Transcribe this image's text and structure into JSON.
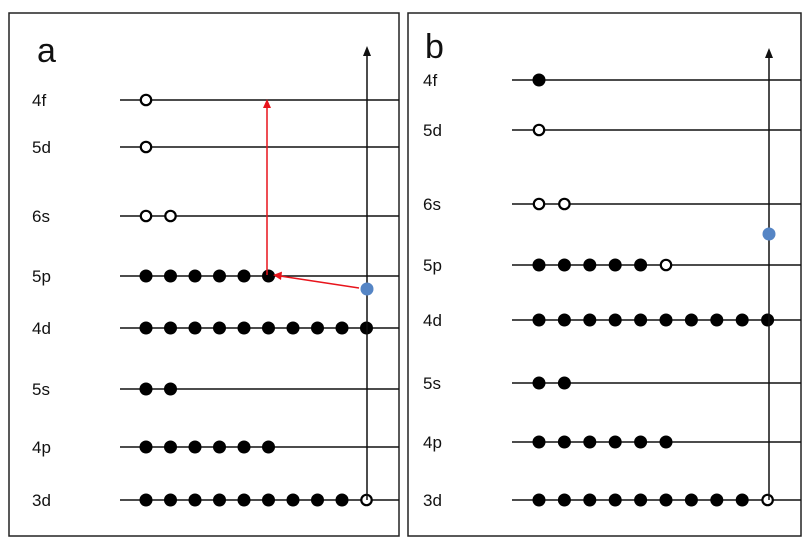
{
  "colors": {
    "electron_filled": "#000000",
    "vacancy": "#ffffff",
    "excited_electron": "#5585c5",
    "transition_arrow": "#e8141c",
    "lines": "#111111"
  },
  "panels": [
    {
      "label": "a",
      "levels": [
        {
          "name": "4f",
          "filled": 0,
          "empty": 1
        },
        {
          "name": "5d",
          "filled": 0,
          "empty": 1
        },
        {
          "name": "6s",
          "filled": 0,
          "empty": 2
        },
        {
          "name": "5p",
          "filled": 6,
          "empty": 0
        },
        {
          "name": "4d",
          "filled": 10,
          "empty": 0
        },
        {
          "name": "5s",
          "filled": 2,
          "empty": 0
        },
        {
          "name": "4p",
          "filled": 6,
          "empty": 0
        },
        {
          "name": "3d",
          "filled": 9,
          "empty": 1
        }
      ],
      "has_transition_arrows": true
    },
    {
      "label": "b",
      "levels": [
        {
          "name": "4f",
          "filled": 1,
          "empty": 0
        },
        {
          "name": "5d",
          "filled": 0,
          "empty": 1
        },
        {
          "name": "6s",
          "filled": 0,
          "empty": 2
        },
        {
          "name": "5p",
          "filled": 5,
          "empty": 1
        },
        {
          "name": "4d",
          "filled": 10,
          "empty": 0
        },
        {
          "name": "5s",
          "filled": 2,
          "empty": 0
        },
        {
          "name": "4p",
          "filled": 6,
          "empty": 0
        },
        {
          "name": "3d",
          "filled": 9,
          "empty": 1
        }
      ],
      "has_transition_arrows": false
    }
  ]
}
